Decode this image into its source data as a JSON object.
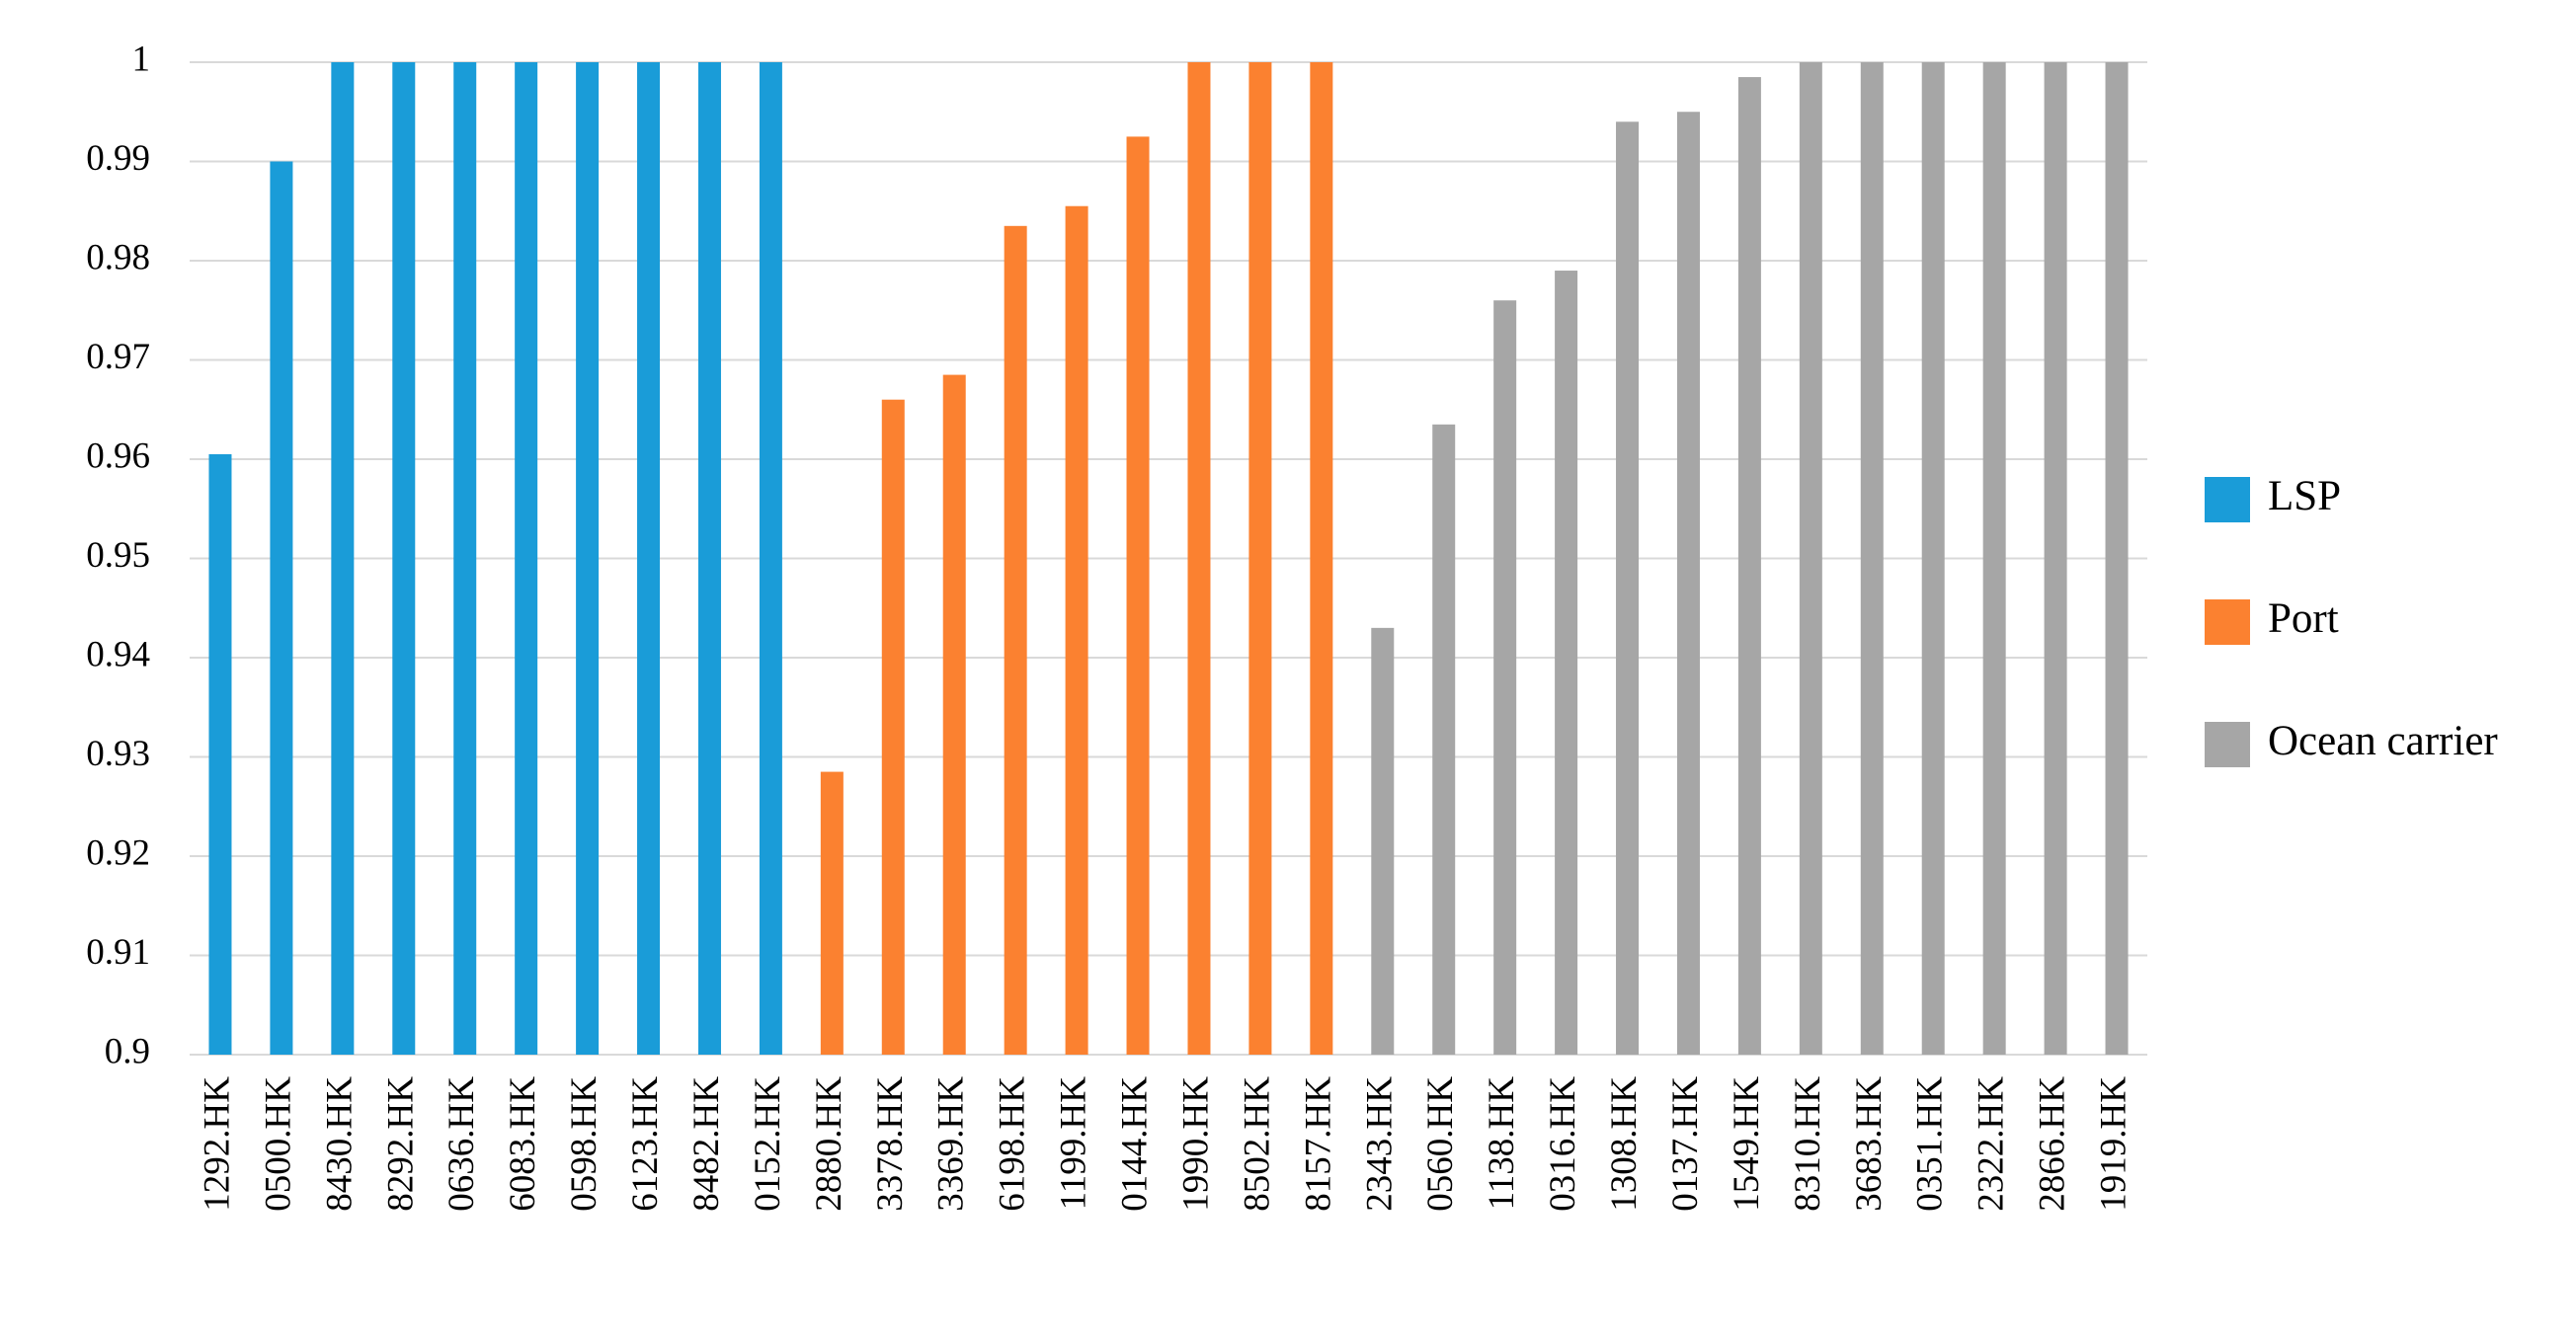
{
  "chart_data": {
    "type": "bar",
    "categories": [
      "1292.HK",
      "0500.HK",
      "8430.HK",
      "8292.HK",
      "0636.HK",
      "6083.HK",
      "0598.HK",
      "6123.HK",
      "8482.HK",
      "0152.HK",
      "2880.HK",
      "3378.HK",
      "3369.HK",
      "6198.HK",
      "1199.HK",
      "0144.HK",
      "1990.HK",
      "8502.HK",
      "8157.HK",
      "2343.HK",
      "0560.HK",
      "1138.HK",
      "0316.HK",
      "1308.HK",
      "0137.HK",
      "1549.HK",
      "8310.HK",
      "3683.HK",
      "0351.HK",
      "2322.HK",
      "2866.HK",
      "1919.HK"
    ],
    "series": [
      {
        "name": "LSP",
        "color": "#1a9cd8",
        "values": [
          0.9605,
          0.99,
          1,
          1,
          1,
          1,
          1,
          1,
          1,
          1,
          null,
          null,
          null,
          null,
          null,
          null,
          null,
          null,
          null,
          null,
          null,
          null,
          null,
          null,
          null,
          null,
          null,
          null,
          null,
          null,
          null,
          null
        ]
      },
      {
        "name": "Port",
        "color": "#fb8130",
        "values": [
          null,
          null,
          null,
          null,
          null,
          null,
          null,
          null,
          null,
          null,
          0.9285,
          0.966,
          0.9685,
          0.9835,
          0.9855,
          0.9925,
          1,
          1,
          1,
          null,
          null,
          null,
          null,
          null,
          null,
          null,
          null,
          null,
          null,
          null,
          null,
          null
        ]
      },
      {
        "name": "Ocean carrier",
        "color": "#a6a6a6",
        "values": [
          null,
          null,
          null,
          null,
          null,
          null,
          null,
          null,
          null,
          null,
          null,
          null,
          null,
          null,
          null,
          null,
          null,
          null,
          null,
          0.943,
          0.9635,
          0.976,
          0.979,
          0.994,
          0.995,
          0.9985,
          1,
          1,
          1,
          1,
          1,
          1
        ]
      }
    ],
    "ylim": [
      0.9,
      1
    ],
    "yticks": [
      0.9,
      0.91,
      0.92,
      0.93,
      0.94,
      0.95,
      0.96,
      0.97,
      0.98,
      0.99,
      1
    ],
    "grid": true,
    "legend": "right"
  }
}
